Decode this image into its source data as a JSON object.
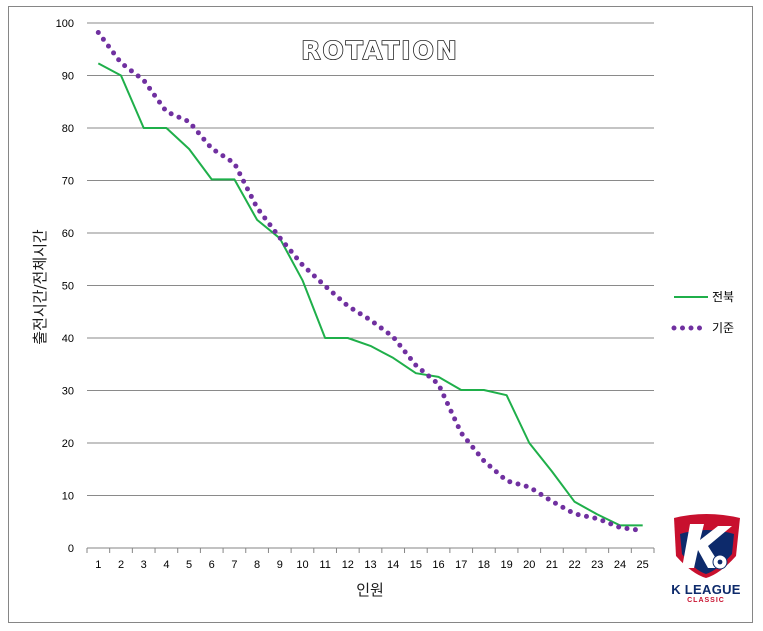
{
  "chart_data": {
    "type": "line",
    "title": "ROTATION",
    "xlabel": "인원",
    "ylabel": "출전시간/전체시간",
    "x": [
      1,
      2,
      3,
      4,
      5,
      6,
      7,
      8,
      9,
      10,
      11,
      12,
      13,
      14,
      15,
      16,
      17,
      18,
      19,
      20,
      21,
      22,
      23,
      24,
      25
    ],
    "x_tick_labels": [
      "1",
      "2",
      "3",
      "4",
      "5",
      "6",
      "7",
      "8",
      "9",
      "10",
      "11",
      "12",
      "13",
      "14",
      "15",
      "16",
      "17",
      "18",
      "19",
      "20",
      "21",
      "22",
      "23",
      "24",
      "25"
    ],
    "xlim": [
      0.5,
      25.5
    ],
    "ylim": [
      0,
      100
    ],
    "y_ticks": [
      "0",
      "10",
      "20",
      "30",
      "40",
      "50",
      "60",
      "70",
      "80",
      "90",
      "100"
    ],
    "grid": "horizontal",
    "legend_position": "right",
    "series": [
      {
        "name": "전북",
        "style": "solid",
        "color": "#1faf4a",
        "values": [
          92.3,
          90,
          80,
          80,
          76,
          70.2,
          70.2,
          62.5,
          59,
          51,
          40,
          40,
          38.5,
          36.2,
          33.3,
          32.6,
          30.1,
          30.1,
          29.1,
          20,
          14.6,
          8.8,
          6.4,
          4.3,
          4.3
        ]
      },
      {
        "name": "기준",
        "style": "dotted",
        "color": "#7030a0",
        "values": [
          98.2,
          92.4,
          89.1,
          83.1,
          81.2,
          76.1,
          73.3,
          64.8,
          59.1,
          53.9,
          49.9,
          46.1,
          43.4,
          40.2,
          34.8,
          31.2,
          21.9,
          16.6,
          12.8,
          11.6,
          8.9,
          6.5,
          5.6,
          3.9,
          3.3
        ]
      }
    ]
  },
  "logo": {
    "line1": "K LEAGUE",
    "line2": "CLASSIC",
    "colors": {
      "red": "#c8102e",
      "navy": "#0d2a6b"
    }
  }
}
